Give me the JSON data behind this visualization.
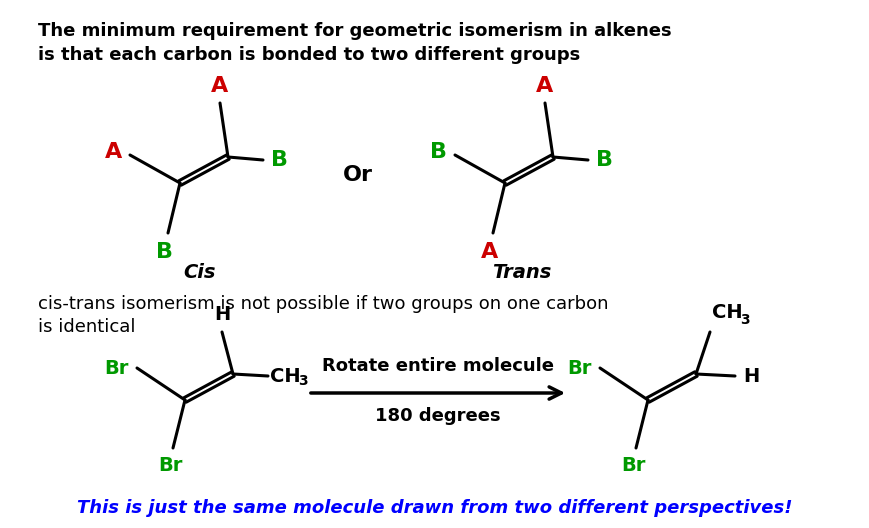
{
  "bg_color": "#ffffff",
  "title_text1": "The minimum requirement for geometric isomerism in alkenes",
  "title_text2": "is that each carbon is bonded to two different groups",
  "title_fontsize": 13,
  "or_text": "Or",
  "cis_label": "Cis",
  "trans_label": "Trans",
  "section2_text1": "cis-trans isomerism is not possible if two groups on one carbon",
  "section2_text2": "is identical",
  "section2_fontsize": 13,
  "arrow_label1": "Rotate entire molecule",
  "arrow_label2": "180 degrees",
  "footer_text": "This is just the same molecule drawn from two different perspectives!",
  "footer_color": "#0000FF",
  "footer_fontsize": 13,
  "red": "#CC0000",
  "green": "#009900",
  "black": "#000000"
}
